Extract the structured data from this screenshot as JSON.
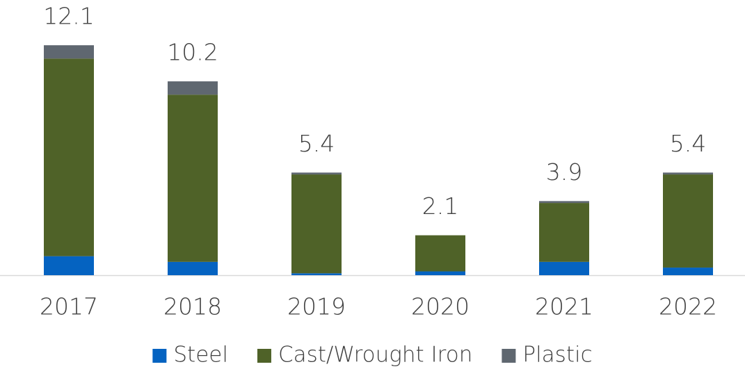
{
  "chart_data": {
    "type": "stacked_bar",
    "categories": [
      "2017",
      "2018",
      "2019",
      "2020",
      "2021",
      "2022"
    ],
    "series": [
      {
        "name": "Steel",
        "color": "#0563c1",
        "values": [
          1.0,
          0.7,
          0.1,
          0.2,
          0.7,
          0.4
        ]
      },
      {
        "name": "Cast/Wrought Iron",
        "color": "#4f6228",
        "values": [
          10.4,
          8.8,
          5.2,
          1.9,
          3.1,
          4.9
        ]
      },
      {
        "name": "Plastic",
        "color": "#5f6770",
        "values": [
          0.7,
          0.7,
          0.1,
          0.0,
          0.1,
          0.1
        ]
      }
    ],
    "totals": [
      12.1,
      10.2,
      5.4,
      2.1,
      3.9,
      5.4
    ],
    "ylim": [
      0,
      13
    ],
    "legend": "bottom"
  }
}
